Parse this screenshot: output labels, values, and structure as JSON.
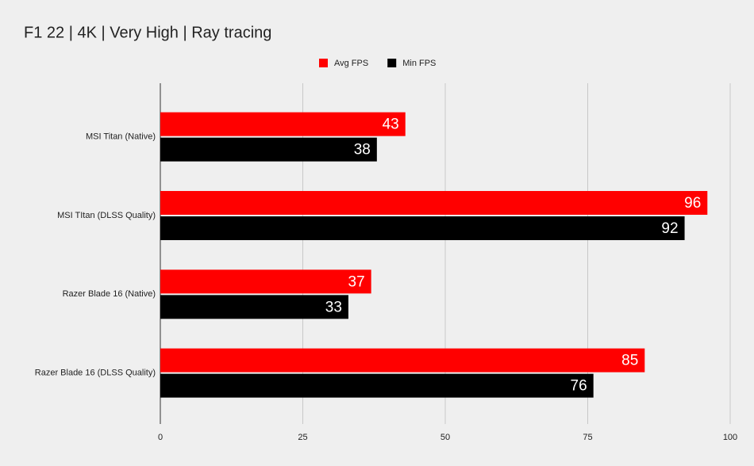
{
  "chart_data": {
    "type": "bar",
    "orientation": "horizontal",
    "title": "F1 22 | 4K | Very High | Ray tracing",
    "categories": [
      "MSI Titan (Native)",
      "MSI TItan (DLSS Quality)",
      "Razer Blade 16 (Native)",
      "Razer Blade 16 (DLSS Quality)"
    ],
    "series": [
      {
        "name": "Avg FPS",
        "color": "#ff0000",
        "values": [
          43,
          96,
          37,
          85
        ]
      },
      {
        "name": "Min FPS",
        "color": "#000000",
        "values": [
          38,
          92,
          33,
          76
        ]
      }
    ],
    "xlim": [
      0,
      100
    ],
    "xticks": [
      0,
      25,
      50,
      75,
      100
    ],
    "grid": true,
    "legend": "top"
  }
}
